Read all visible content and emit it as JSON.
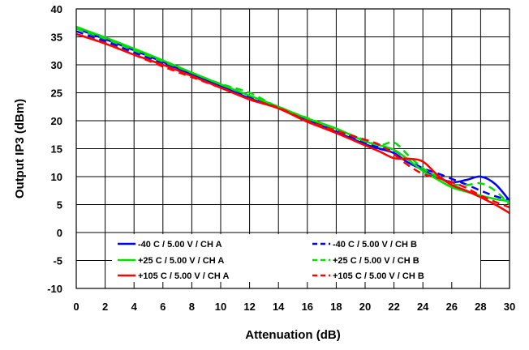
{
  "chart_data": {
    "type": "line",
    "xlabel": "Attenuation (dB)",
    "ylabel": "Output IP3 (dBm)",
    "xlim": [
      0,
      30
    ],
    "ylim": [
      -10,
      40
    ],
    "x_ticks": [
      "0",
      "2",
      "4",
      "6",
      "8",
      "10",
      "12",
      "14",
      "16",
      "18",
      "20",
      "22",
      "24",
      "26",
      "28",
      "30"
    ],
    "y_ticks": [
      "-10",
      "-5",
      "0",
      "5",
      "10",
      "15",
      "20",
      "25",
      "30",
      "35",
      "40"
    ],
    "grid": true,
    "legend_placement": "bottom-center, inside plot",
    "series": [
      {
        "name": "-40 C  / 5.00 V / CH A",
        "color": "#0000ff",
        "dash": "solid",
        "points": [
          [
            0,
            36.5
          ],
          [
            2,
            34.6
          ],
          [
            4,
            32.6
          ],
          [
            6,
            30.5
          ],
          [
            8,
            28.3
          ],
          [
            10,
            26.2
          ],
          [
            12,
            24.0
          ],
          [
            14,
            22.3
          ],
          [
            16,
            20.2
          ],
          [
            18,
            18.0
          ],
          [
            20,
            15.8
          ],
          [
            21,
            15.0
          ],
          [
            22,
            14.2
          ],
          [
            23,
            12.5
          ],
          [
            24,
            11.2
          ],
          [
            25,
            9.9
          ],
          [
            26,
            9.0
          ],
          [
            27,
            9.4
          ],
          [
            28,
            10.0
          ],
          [
            29,
            8.7
          ],
          [
            30,
            5.7
          ]
        ]
      },
      {
        "name": "-40 C  / 5.00 V / CH B",
        "color": "#0000ff",
        "dash": "dashed",
        "points": [
          [
            0,
            36.0
          ],
          [
            2,
            34.2
          ],
          [
            4,
            32.2
          ],
          [
            6,
            30.2
          ],
          [
            8,
            28.2
          ],
          [
            10,
            26.1
          ],
          [
            12,
            24.2
          ],
          [
            14,
            22.5
          ],
          [
            16,
            20.2
          ],
          [
            18,
            18.2
          ],
          [
            20,
            16.0
          ],
          [
            21,
            15.3
          ],
          [
            22,
            14.7
          ],
          [
            23,
            13.0
          ],
          [
            24,
            11.5
          ],
          [
            25,
            10.6
          ],
          [
            26,
            9.6
          ],
          [
            27,
            8.6
          ],
          [
            28,
            7.5
          ],
          [
            29,
            6.5
          ],
          [
            30,
            5.8
          ]
        ]
      },
      {
        "name": "+25 C  / 5.00 V / CH A",
        "color": "#00e000",
        "dash": "solid",
        "points": [
          [
            0,
            36.8
          ],
          [
            2,
            34.9
          ],
          [
            4,
            32.9
          ],
          [
            6,
            30.8
          ],
          [
            8,
            28.6
          ],
          [
            10,
            26.5
          ],
          [
            12,
            24.5
          ],
          [
            14,
            22.5
          ],
          [
            16,
            20.4
          ],
          [
            18,
            18.6
          ],
          [
            20,
            16.3
          ],
          [
            21,
            15.6
          ],
          [
            22,
            14.8
          ],
          [
            23,
            13.0
          ],
          [
            24,
            11.0
          ],
          [
            25,
            9.5
          ],
          [
            26,
            8.1
          ],
          [
            27,
            7.3
          ],
          [
            28,
            6.6
          ],
          [
            29,
            6.0
          ],
          [
            30,
            5.6
          ]
        ]
      },
      {
        "name": "+25 C  / 5.00 V / CH B",
        "color": "#00e000",
        "dash": "dashed",
        "points": [
          [
            0,
            36.5
          ],
          [
            2,
            34.7
          ],
          [
            4,
            32.6
          ],
          [
            6,
            30.6
          ],
          [
            8,
            28.6
          ],
          [
            10,
            26.6
          ],
          [
            12,
            25.0
          ],
          [
            14,
            22.4
          ],
          [
            16,
            20.5
          ],
          [
            18,
            18.5
          ],
          [
            20,
            16.5
          ],
          [
            21,
            15.6
          ],
          [
            22,
            16.1
          ],
          [
            23,
            13.8
          ],
          [
            24,
            11.5
          ],
          [
            25,
            10.0
          ],
          [
            26,
            8.7
          ],
          [
            27,
            8.5
          ],
          [
            28,
            8.8
          ],
          [
            29,
            7.5
          ],
          [
            30,
            5.0
          ]
        ]
      },
      {
        "name": "+105 C  / 5.00 V / CH A",
        "color": "#ff0000",
        "dash": "solid",
        "points": [
          [
            0,
            35.5
          ],
          [
            2,
            33.8
          ],
          [
            4,
            31.8
          ],
          [
            6,
            30.0
          ],
          [
            8,
            28.0
          ],
          [
            10,
            25.9
          ],
          [
            12,
            23.8
          ],
          [
            14,
            22.2
          ],
          [
            16,
            19.8
          ],
          [
            18,
            17.8
          ],
          [
            20,
            15.6
          ],
          [
            21,
            14.5
          ],
          [
            22,
            13.3
          ],
          [
            23,
            13.2
          ],
          [
            24,
            12.7
          ],
          [
            25,
            10.3
          ],
          [
            26,
            8.5
          ],
          [
            27,
            7.5
          ],
          [
            28,
            6.3
          ],
          [
            29,
            5.0
          ],
          [
            30,
            3.5
          ]
        ]
      },
      {
        "name": "+105 C  / 5.00 V / CH B",
        "color": "#ff0000",
        "dash": "dashed",
        "points": [
          [
            0,
            35.5
          ],
          [
            2,
            33.9
          ],
          [
            4,
            31.8
          ],
          [
            6,
            29.7
          ],
          [
            8,
            27.8
          ],
          [
            10,
            25.9
          ],
          [
            12,
            23.9
          ],
          [
            14,
            22.3
          ],
          [
            16,
            20.0
          ],
          [
            18,
            18.2
          ],
          [
            20,
            16.6
          ],
          [
            21,
            15.7
          ],
          [
            22,
            14.0
          ],
          [
            23,
            12.0
          ],
          [
            24,
            10.5
          ],
          [
            25,
            9.8
          ],
          [
            26,
            9.0
          ],
          [
            27,
            8.0
          ],
          [
            28,
            6.6
          ],
          [
            29,
            5.5
          ],
          [
            30,
            4.5
          ]
        ]
      }
    ]
  }
}
